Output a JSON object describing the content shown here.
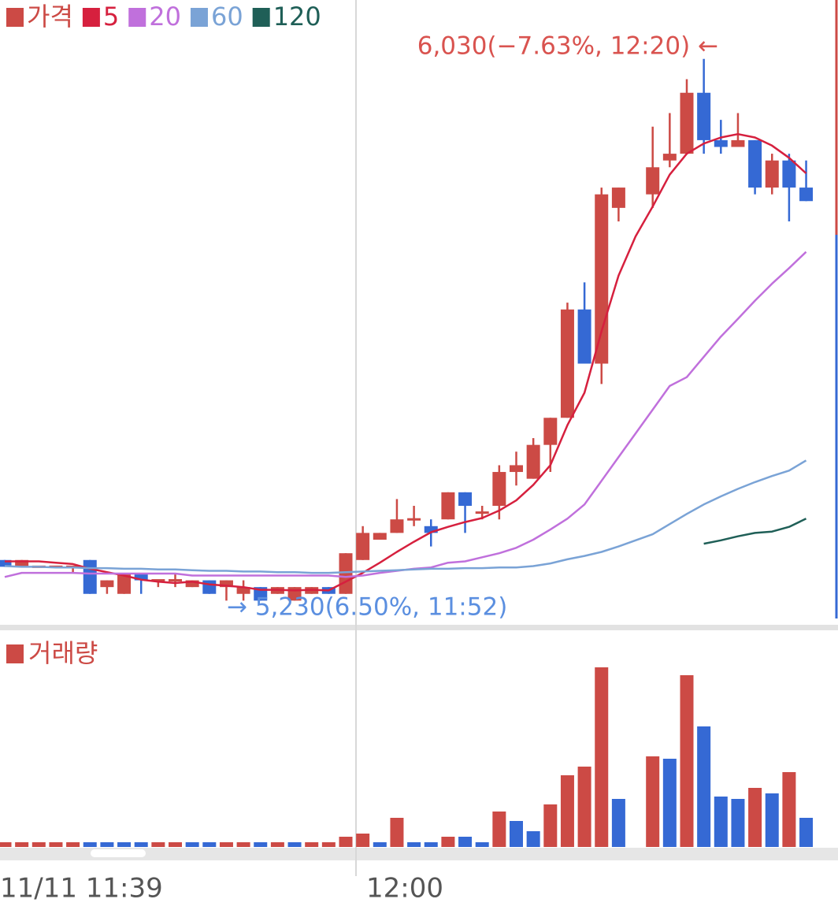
{
  "chart_data": [
    {
      "type": "candlestick",
      "name": "가격",
      "categories": [
        "11/11 11:39",
        null,
        null,
        null,
        null,
        null,
        null,
        null,
        null,
        null,
        null,
        null,
        null,
        null,
        null,
        null,
        null,
        null,
        null,
        null,
        "12:00",
        null,
        null,
        null,
        null,
        null,
        null,
        null,
        null,
        null,
        null,
        null,
        null,
        null,
        null,
        null,
        null,
        null,
        null,
        null,
        null,
        null,
        null,
        null,
        null,
        null,
        null,
        null
      ],
      "open": [
        5290,
        5280,
        5280,
        5280,
        5280,
        5290,
        5250,
        5240,
        5270,
        5260,
        5260,
        5250,
        5260,
        5250,
        5240,
        5250,
        5240,
        5230,
        5240,
        5250,
        5240,
        5290,
        5320,
        5330,
        5350,
        5340,
        5350,
        5390,
        5360,
        5370,
        5420,
        5410,
        5460,
        5500,
        5660,
        5580,
        5810,
        null,
        5830,
        5880,
        5890,
        5980,
        5910,
        5900,
        5910,
        5840,
        5880,
        5840
      ],
      "high": [
        5290,
        5290,
        5280,
        5280,
        5280,
        5290,
        5260,
        5270,
        5270,
        5260,
        5270,
        5260,
        5260,
        5260,
        5260,
        5250,
        5250,
        5250,
        5250,
        5250,
        5300,
        5340,
        5330,
        5380,
        5370,
        5350,
        5390,
        5390,
        5370,
        5430,
        5450,
        5470,
        5500,
        5670,
        5700,
        5840,
        5840,
        null,
        5930,
        5950,
        6000,
        6030,
        5940,
        5950,
        5910,
        5890,
        5890,
        5880
      ],
      "low": [
        5280,
        5280,
        5280,
        5280,
        5270,
        5240,
        5240,
        5240,
        5240,
        5250,
        5250,
        5250,
        5240,
        5230,
        5230,
        5230,
        5240,
        5230,
        5240,
        5240,
        5240,
        5290,
        5320,
        5330,
        5340,
        5310,
        5350,
        5330,
        5350,
        5350,
        5400,
        5410,
        5420,
        5500,
        5580,
        5550,
        5790,
        null,
        5810,
        5870,
        5890,
        5890,
        5890,
        5900,
        5830,
        5830,
        5790,
        5820
      ],
      "close": [
        5280,
        5290,
        5280,
        5280,
        5280,
        5240,
        5260,
        5270,
        5260,
        5260,
        5260,
        5260,
        5240,
        5260,
        5250,
        5230,
        5250,
        5250,
        5250,
        5240,
        5300,
        5330,
        5330,
        5350,
        5350,
        5330,
        5390,
        5370,
        5360,
        5420,
        5430,
        5460,
        5500,
        5660,
        5580,
        5830,
        5840,
        null,
        5870,
        5890,
        5980,
        5910,
        5900,
        5910,
        5840,
        5880,
        5840,
        5820
      ],
      "up_color": "#cc4a45",
      "down_color": "#3569d4",
      "ylim": [
        5192,
        6117
      ],
      "series": [
        {
          "name": "5",
          "color": "#d6203e",
          "values": [
            5288,
            5288,
            5288,
            5286,
            5284,
            5277,
            5272,
            5267,
            5261,
            5258,
            5256,
            5258,
            5254,
            5252,
            5250,
            5246,
            5246,
            5245,
            5246,
            5245,
            5258,
            5271,
            5286,
            5302,
            5317,
            5331,
            5339,
            5346,
            5352,
            5363,
            5378,
            5401,
            5430,
            5489,
            5537,
            5628,
            5710,
            5768,
            5812,
            5859,
            5890,
            5905,
            5914,
            5919,
            5914,
            5902,
            5884,
            5861
          ]
        },
        {
          "name": "20",
          "color": "#c070dc",
          "values": [
            5265,
            5271,
            5271,
            5271,
            5271,
            5270,
            5270,
            5270,
            5270,
            5270,
            5270,
            5267,
            5267,
            5267,
            5267,
            5267,
            5267,
            5267,
            5267,
            5267,
            5265,
            5267,
            5271,
            5274,
            5277,
            5279,
            5286,
            5288,
            5294,
            5300,
            5308,
            5320,
            5335,
            5351,
            5372,
            5407,
            5442,
            5477,
            5512,
            5547,
            5560,
            5590,
            5620,
            5646,
            5673,
            5698,
            5721,
            5745
          ]
        },
        {
          "name": "60",
          "color": "#7aa3d6",
          "values": [
            5281,
            5280,
            5280,
            5279,
            5279,
            5278,
            5278,
            5277,
            5277,
            5276,
            5276,
            5275,
            5274,
            5274,
            5273,
            5273,
            5272,
            5272,
            5271,
            5271,
            5272,
            5273,
            5274,
            5275,
            5276,
            5277,
            5277,
            5278,
            5278,
            5279,
            5279,
            5281,
            5285,
            5291,
            5296,
            5302,
            5310,
            5319,
            5328,
            5343,
            5358,
            5372,
            5384,
            5395,
            5405,
            5414,
            5422,
            5437
          ]
        },
        {
          "name": "120",
          "color": "#1f5f57",
          "values": [
            null,
            null,
            null,
            null,
            null,
            null,
            null,
            null,
            null,
            null,
            null,
            null,
            null,
            null,
            null,
            null,
            null,
            null,
            null,
            null,
            null,
            null,
            null,
            null,
            null,
            null,
            null,
            null,
            null,
            null,
            null,
            null,
            null,
            null,
            null,
            null,
            null,
            null,
            null,
            null,
            null,
            5314,
            5319,
            5325,
            5330,
            5332,
            5339,
            5351
          ]
        }
      ],
      "annotations": [
        {
          "text": "6,030(−7.63%, 12:20) ←",
          "color": "#d9534f"
        },
        {
          "text": "→ 5,230(6.50%, 11:52)",
          "color": "#5b8fe0"
        }
      ]
    },
    {
      "type": "bar",
      "name": "거래량",
      "color": "#cc4a45",
      "values": [
        6,
        6,
        6,
        6,
        6,
        6,
        6,
        6,
        6,
        6,
        6,
        6,
        6,
        6,
        6,
        6,
        6,
        6,
        6,
        6,
        13,
        17,
        6,
        37,
        6,
        6,
        13,
        13,
        6,
        45,
        33,
        20,
        54,
        91,
        102,
        228,
        61,
        null,
        115,
        112,
        218,
        153,
        64,
        61,
        75,
        68,
        95,
        37
      ],
      "colors": [
        "#cc4a45",
        "#cc4a45",
        "#cc4a45",
        "#cc4a45",
        "#cc4a45",
        "#3569d4",
        "#3569d4",
        "#3569d4",
        "#3569d4",
        "#cc4a45",
        "#cc4a45",
        "#3569d4",
        "#3569d4",
        "#cc4a45",
        "#cc4a45",
        "#3569d4",
        "#cc4a45",
        "#3569d4",
        "#cc4a45",
        "#cc4a45",
        "#cc4a45",
        "#cc4a45",
        "#3569d4",
        "#cc4a45",
        "#3569d4",
        "#3569d4",
        "#cc4a45",
        "#3569d4",
        "#3569d4",
        "#cc4a45",
        "#3569d4",
        "#3569d4",
        "#cc4a45",
        "#cc4a45",
        "#cc4a45",
        "#cc4a45",
        "#3569d4",
        null,
        "#cc4a45",
        "#3569d4",
        "#cc4a45",
        "#3569d4",
        "#3569d4",
        "#3569d4",
        "#cc4a45",
        "#3569d4",
        "#cc4a45",
        "#3569d4"
      ],
      "ylim": [
        0,
        275
      ]
    }
  ]
}
